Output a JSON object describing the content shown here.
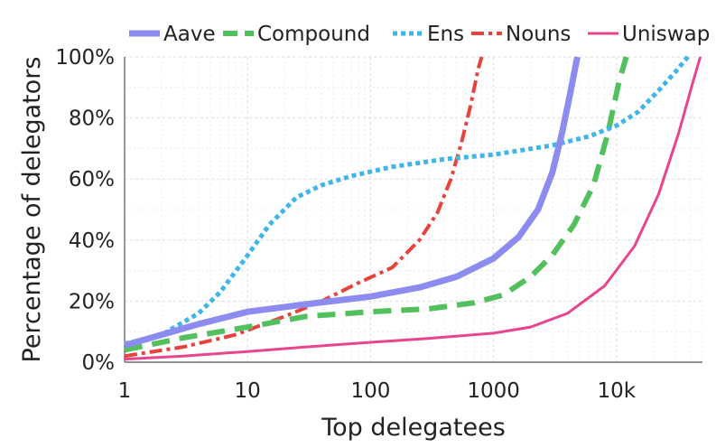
{
  "chart_data": {
    "type": "line",
    "xlabel": "Top delegatees",
    "ylabel": "Percentage of delegators",
    "x_scale": "log",
    "xlim": [
      1,
      50000
    ],
    "ylim": [
      0,
      100
    ],
    "x_ticks": [
      {
        "value": 1,
        "label": "1"
      },
      {
        "value": 10,
        "label": "10"
      },
      {
        "value": 100,
        "label": "100"
      },
      {
        "value": 1000,
        "label": "1000"
      },
      {
        "value": 10000,
        "label": "10k"
      }
    ],
    "y_ticks": [
      {
        "value": 0,
        "label": "0%"
      },
      {
        "value": 20,
        "label": "20%"
      },
      {
        "value": 40,
        "label": "40%"
      },
      {
        "value": 60,
        "label": "60%"
      },
      {
        "value": 80,
        "label": "80%"
      },
      {
        "value": 100,
        "label": "100%"
      }
    ],
    "grid": true,
    "legend_position": "top",
    "series": [
      {
        "name": "Aave",
        "color": "#8c8cf0",
        "style": "solid-thick",
        "points": [
          [
            1,
            5.5
          ],
          [
            2,
            9
          ],
          [
            4,
            12.5
          ],
          [
            10,
            16.5
          ],
          [
            30,
            19
          ],
          [
            100,
            21.5
          ],
          [
            250,
            24.5
          ],
          [
            500,
            28
          ],
          [
            1000,
            34
          ],
          [
            1600,
            41
          ],
          [
            2300,
            50
          ],
          [
            3000,
            62
          ],
          [
            3600,
            75
          ],
          [
            4200,
            88
          ],
          [
            4800,
            100
          ]
        ]
      },
      {
        "name": "Compound",
        "color": "#52c15d",
        "style": "dashed",
        "points": [
          [
            1,
            4
          ],
          [
            3,
            8
          ],
          [
            10,
            11.5
          ],
          [
            30,
            15
          ],
          [
            100,
            16.5
          ],
          [
            300,
            17.5
          ],
          [
            700,
            19.5
          ],
          [
            1200,
            22
          ],
          [
            2000,
            28
          ],
          [
            3000,
            35
          ],
          [
            4500,
            45
          ],
          [
            6500,
            58
          ],
          [
            8500,
            75
          ],
          [
            10500,
            92
          ],
          [
            12000,
            100
          ]
        ]
      },
      {
        "name": "Ens",
        "color": "#3fb5ea",
        "style": "dotted",
        "points": [
          [
            1,
            6
          ],
          [
            2,
            9
          ],
          [
            4,
            16
          ],
          [
            6,
            23
          ],
          [
            10,
            35
          ],
          [
            15,
            45
          ],
          [
            25,
            54
          ],
          [
            40,
            58
          ],
          [
            70,
            61
          ],
          [
            150,
            64
          ],
          [
            400,
            66.5
          ],
          [
            1000,
            68
          ],
          [
            3000,
            71
          ],
          [
            6000,
            74
          ],
          [
            10000,
            77.5
          ],
          [
            15000,
            82
          ],
          [
            22000,
            89
          ],
          [
            30000,
            95
          ],
          [
            38000,
            100
          ]
        ]
      },
      {
        "name": "Nouns",
        "color": "#e8423e",
        "style": "dashdot",
        "points": [
          [
            1,
            2
          ],
          [
            3,
            5
          ],
          [
            8,
            9
          ],
          [
            20,
            15
          ],
          [
            40,
            20
          ],
          [
            80,
            26
          ],
          [
            150,
            31
          ],
          [
            250,
            40
          ],
          [
            350,
            49
          ],
          [
            450,
            60
          ],
          [
            550,
            72
          ],
          [
            650,
            84
          ],
          [
            750,
            96
          ],
          [
            800,
            100
          ]
        ]
      },
      {
        "name": "Uniswap",
        "color": "#e8458e",
        "style": "solid-thin",
        "points": [
          [
            1,
            1
          ],
          [
            3,
            2
          ],
          [
            10,
            3.5
          ],
          [
            30,
            5
          ],
          [
            100,
            6.5
          ],
          [
            300,
            7.8
          ],
          [
            1000,
            9.5
          ],
          [
            2000,
            11.5
          ],
          [
            4000,
            16
          ],
          [
            8000,
            25
          ],
          [
            14000,
            38
          ],
          [
            22000,
            55
          ],
          [
            32000,
            75
          ],
          [
            42000,
            92
          ],
          [
            48000,
            100
          ]
        ]
      }
    ]
  }
}
